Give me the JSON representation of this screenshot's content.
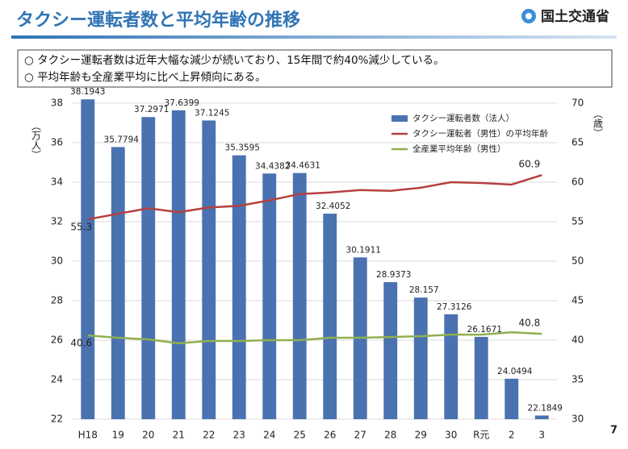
{
  "header": {
    "title": "タクシー運転者数と平均年齢の推移",
    "organization": "国土交通省"
  },
  "notes": [
    "○ タクシー運転者数は近年大幅な減少が続いており、15年間で約40%減少している。",
    "○ 平均年齢も全産業平均に比べ上昇傾向にある。"
  ],
  "page_number": "7",
  "chart_data": {
    "type": "bar",
    "y_label": "（万人）",
    "y2_label": "（歳）",
    "categories": [
      "H18",
      "19",
      "20",
      "21",
      "22",
      "23",
      "24",
      "25",
      "26",
      "27",
      "28",
      "29",
      "30",
      "R元",
      "2",
      "3"
    ],
    "series": [
      {
        "name": "タクシー運転者数（法人）",
        "type": "bar",
        "color": "#4a72b0",
        "values": [
          38.1943,
          35.7794,
          37.2971,
          37.6399,
          37.1245,
          35.3595,
          34.4382,
          34.4631,
          32.4052,
          30.1911,
          28.9373,
          28.157,
          27.3126,
          26.1671,
          24.0494,
          22.1849
        ]
      },
      {
        "name": "タクシー運転者（男性）の平均年齢",
        "type": "line",
        "axis": "y2",
        "color": "#b5413f",
        "values": [
          55.3,
          56.0,
          56.7,
          56.2,
          56.8,
          57.0,
          57.7,
          58.5,
          58.7,
          59.0,
          58.9,
          59.3,
          60.0,
          59.9,
          59.7,
          60.9
        ]
      },
      {
        "name": "全産業平均年齢（男性）",
        "type": "line",
        "axis": "y2",
        "color": "#8fb050",
        "values": [
          40.6,
          40.3,
          40.1,
          39.6,
          39.9,
          39.9,
          40.0,
          40.0,
          40.3,
          40.3,
          40.4,
          40.5,
          40.7,
          40.7,
          41.0,
          40.8
        ]
      }
    ],
    "ylim": [
      22,
      38
    ],
    "yticks": [
      22,
      24,
      26,
      28,
      30,
      32,
      34,
      36,
      38
    ],
    "y2lim": [
      30,
      70
    ],
    "y2ticks": [
      30,
      35,
      40,
      45,
      50,
      55,
      60,
      65,
      70
    ],
    "grid": true,
    "legend": "top-right"
  }
}
